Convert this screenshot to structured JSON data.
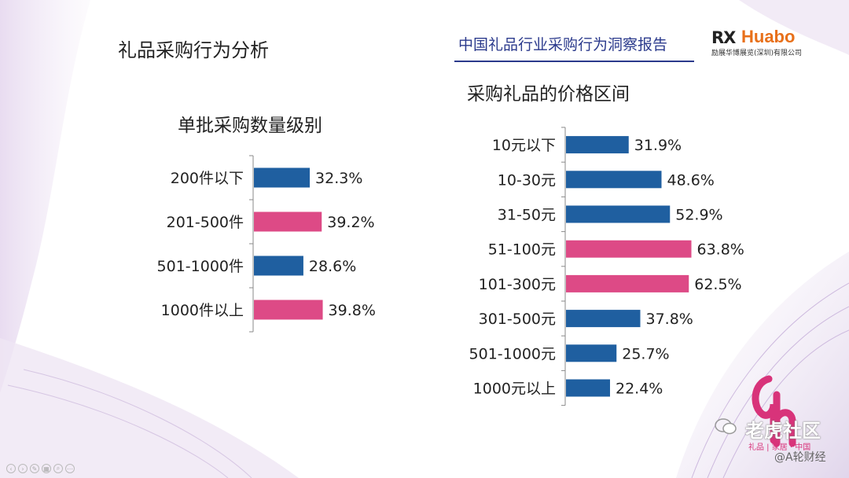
{
  "page": {
    "title": "礼品采购行为分析",
    "report_title": "中国礼品行业采购行为洞察报告",
    "logo": {
      "mark": "RX",
      "name": "Huabo",
      "subtitle": "励展华博展览(深圳)有限公司"
    },
    "footer_logo_tag": "礼品 | 家居 · 中国",
    "watermark": "老虎社区",
    "source_mark": "@A轮财经"
  },
  "colors": {
    "blue": "#1f5fa0",
    "pink": "#dd4a86",
    "axis": "#8a8a8a",
    "header_blue": "#2b3a8c"
  },
  "chart_data": [
    {
      "type": "bar",
      "orientation": "horizontal",
      "title": "单批采购数量级别",
      "categories": [
        "200件以下",
        "201-500件",
        "501-1000件",
        "1000件以上"
      ],
      "values": [
        32.3,
        39.2,
        28.6,
        39.8
      ],
      "value_labels": [
        "32.3%",
        "39.2%",
        "28.6%",
        "39.8%"
      ],
      "highlight": [
        false,
        true,
        false,
        true
      ],
      "unit": "%",
      "grid": false,
      "xlim": [
        0,
        100
      ]
    },
    {
      "type": "bar",
      "orientation": "horizontal",
      "title": "采购礼品的价格区间",
      "categories": [
        "10元以下",
        "10-30元",
        "31-50元",
        "51-100元",
        "101-300元",
        "301-500元",
        "501-1000元",
        "1000元以上"
      ],
      "values": [
        31.9,
        48.6,
        52.9,
        63.8,
        62.5,
        37.8,
        25.7,
        22.4
      ],
      "value_labels": [
        "31.9%",
        "48.6%",
        "52.9%",
        "63.8%",
        "62.5%",
        "37.8%",
        "25.7%",
        "22.4%"
      ],
      "highlight": [
        false,
        false,
        false,
        true,
        true,
        false,
        false,
        false
      ],
      "unit": "%",
      "grid": false,
      "xlim": [
        0,
        100
      ]
    }
  ]
}
